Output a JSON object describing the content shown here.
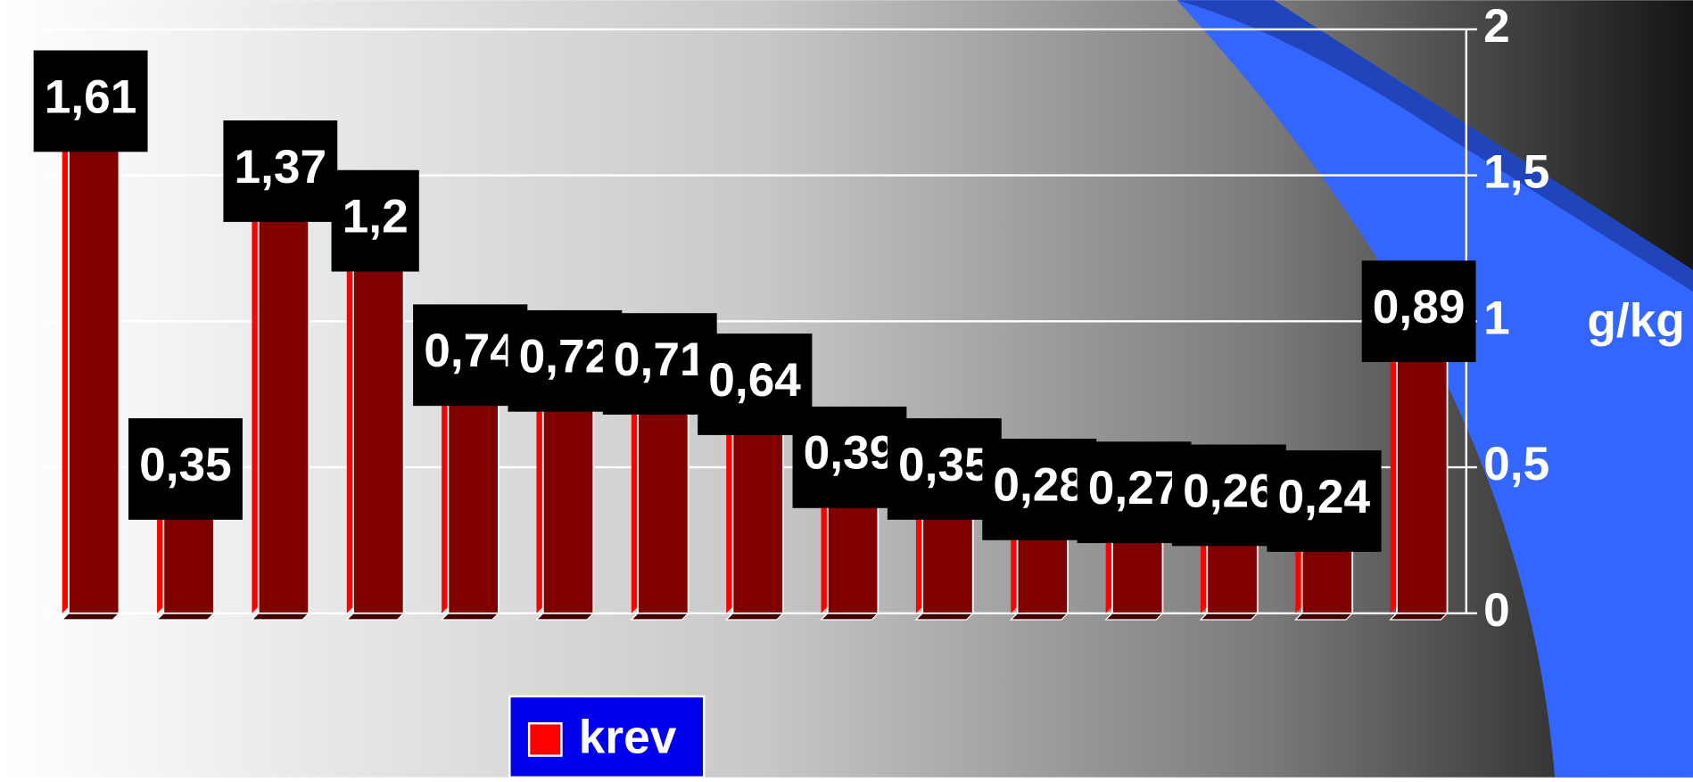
{
  "chart_data": {
    "type": "bar",
    "y_axis_label": "g/kg",
    "categories": [
      null,
      null,
      null,
      null,
      null,
      null,
      null,
      null,
      null,
      null,
      null,
      null,
      null,
      null,
      null
    ],
    "series": [
      {
        "name": "krev",
        "color": "#800000",
        "values": [
          1.61,
          0.35,
          1.37,
          1.2,
          0.74,
          0.72,
          0.71,
          0.64,
          0.39,
          0.35,
          0.28,
          0.27,
          0.26,
          0.24,
          0.89
        ],
        "value_labels": [
          "1,61",
          "0,35",
          "1,37",
          "1,2",
          "0,74",
          "0,72",
          "0,71",
          "0,64",
          "0,39",
          "0,35",
          "0,28",
          "0,27",
          "0,26",
          "0,24",
          "0,89"
        ]
      }
    ],
    "ylim": [
      0,
      2
    ],
    "yticks": [
      0,
      {
        "value": 0.5,
        "label": "0,5"
      },
      1,
      {
        "value": 1.5,
        "label": "1,5"
      },
      2
    ],
    "y_axis_side": "right",
    "grid": true,
    "legend": "bottom"
  }
}
